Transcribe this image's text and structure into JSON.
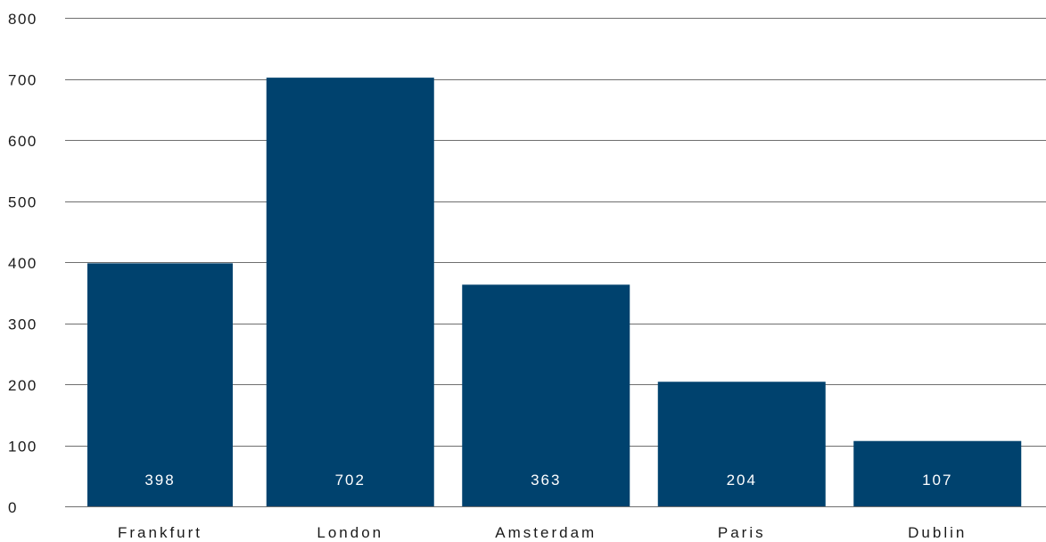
{
  "chart_data": {
    "type": "bar",
    "title": "",
    "xlabel": "",
    "ylabel": "",
    "categories": [
      "Frankfurt",
      "London",
      "Amsterdam",
      "Paris",
      "Dublin"
    ],
    "values": [
      398,
      702,
      363,
      204,
      107
    ],
    "data_labels": [
      "398",
      "702",
      "363",
      "204",
      "107"
    ],
    "ylim": [
      0,
      800
    ],
    "y_ticks": [
      0,
      100,
      200,
      300,
      400,
      500,
      600,
      700,
      800
    ],
    "y_tick_labels": [
      "0",
      "100",
      "200",
      "300",
      "400",
      "500",
      "600",
      "700",
      "800"
    ],
    "grid": true,
    "legend": "none",
    "colors": {
      "bar": "#00426e",
      "grid": "#6f6f6f",
      "value_text": "#ffffff",
      "axis_text": "#1a1a1a"
    }
  }
}
